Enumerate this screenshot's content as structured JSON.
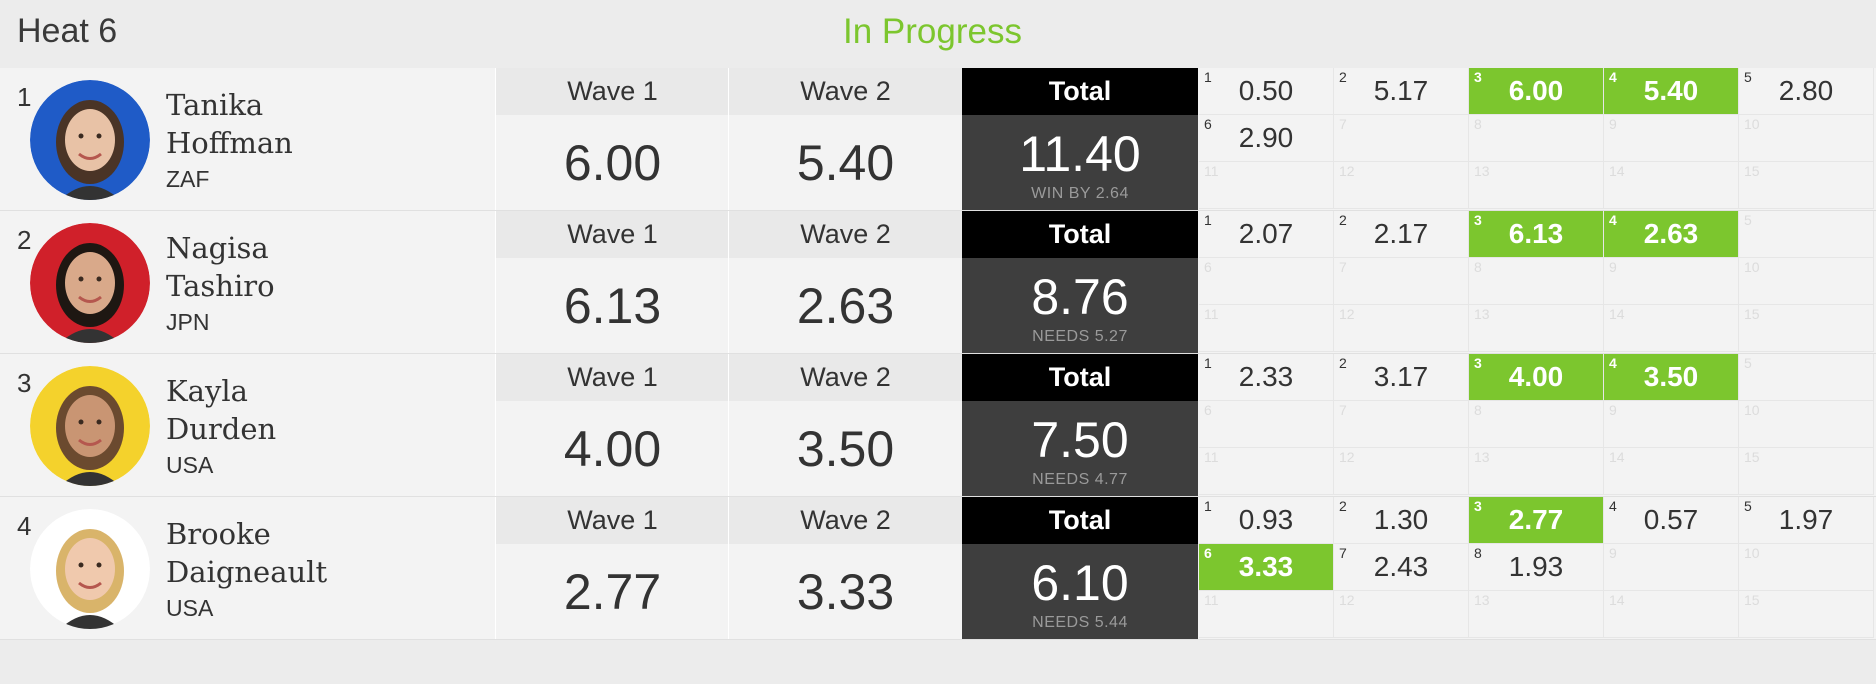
{
  "heat": {
    "title": "Heat 6",
    "status": "In Progress"
  },
  "labels": {
    "wave1": "Wave 1",
    "wave2": "Wave 2",
    "total": "Total"
  },
  "colors": {
    "accent": "#7cc62e",
    "total_header": "#000000",
    "total_body": "#3e3e3e"
  },
  "surfers": [
    {
      "rank": "1",
      "first": "Tanika",
      "last": "Hoffman",
      "country": "ZAF",
      "avatar_icon": "surfer-photo-tanika-hoffman",
      "avatar_bg": "#1f5bc7",
      "wave1": "6.00",
      "wave2": "5.40",
      "total": "11.40",
      "note": "WIN BY 2.64",
      "waves": [
        {
          "n": "1",
          "s": "0.50",
          "best": false
        },
        {
          "n": "2",
          "s": "5.17",
          "best": false
        },
        {
          "n": "3",
          "s": "6.00",
          "best": true
        },
        {
          "n": "4",
          "s": "5.40",
          "best": true
        },
        {
          "n": "5",
          "s": "2.80",
          "best": false
        },
        {
          "n": "6",
          "s": "2.90",
          "best": false
        },
        {
          "n": "7",
          "s": "",
          "best": false
        },
        {
          "n": "8",
          "s": "",
          "best": false
        },
        {
          "n": "9",
          "s": "",
          "best": false
        },
        {
          "n": "10",
          "s": "",
          "best": false
        },
        {
          "n": "11",
          "s": "",
          "best": false
        },
        {
          "n": "12",
          "s": "",
          "best": false
        },
        {
          "n": "13",
          "s": "",
          "best": false
        },
        {
          "n": "14",
          "s": "",
          "best": false
        },
        {
          "n": "15",
          "s": "",
          "best": false
        }
      ]
    },
    {
      "rank": "2",
      "first": "Nagisa",
      "last": "Tashiro",
      "country": "JPN",
      "avatar_icon": "surfer-photo-nagisa-tashiro",
      "avatar_bg": "#d0202a",
      "wave1": "6.13",
      "wave2": "2.63",
      "total": "8.76",
      "note": "NEEDS 5.27",
      "waves": [
        {
          "n": "1",
          "s": "2.07",
          "best": false
        },
        {
          "n": "2",
          "s": "2.17",
          "best": false
        },
        {
          "n": "3",
          "s": "6.13",
          "best": true
        },
        {
          "n": "4",
          "s": "2.63",
          "best": true
        },
        {
          "n": "5",
          "s": "",
          "best": false
        },
        {
          "n": "6",
          "s": "",
          "best": false
        },
        {
          "n": "7",
          "s": "",
          "best": false
        },
        {
          "n": "8",
          "s": "",
          "best": false
        },
        {
          "n": "9",
          "s": "",
          "best": false
        },
        {
          "n": "10",
          "s": "",
          "best": false
        },
        {
          "n": "11",
          "s": "",
          "best": false
        },
        {
          "n": "12",
          "s": "",
          "best": false
        },
        {
          "n": "13",
          "s": "",
          "best": false
        },
        {
          "n": "14",
          "s": "",
          "best": false
        },
        {
          "n": "15",
          "s": "",
          "best": false
        }
      ]
    },
    {
      "rank": "3",
      "first": "Kayla",
      "last": "Durden",
      "country": "USA",
      "avatar_icon": "surfer-photo-kayla-durden",
      "avatar_bg": "#f4d22c",
      "wave1": "4.00",
      "wave2": "3.50",
      "total": "7.50",
      "note": "NEEDS 4.77",
      "waves": [
        {
          "n": "1",
          "s": "2.33",
          "best": false
        },
        {
          "n": "2",
          "s": "3.17",
          "best": false
        },
        {
          "n": "3",
          "s": "4.00",
          "best": true
        },
        {
          "n": "4",
          "s": "3.50",
          "best": true
        },
        {
          "n": "5",
          "s": "",
          "best": false
        },
        {
          "n": "6",
          "s": "",
          "best": false
        },
        {
          "n": "7",
          "s": "",
          "best": false
        },
        {
          "n": "8",
          "s": "",
          "best": false
        },
        {
          "n": "9",
          "s": "",
          "best": false
        },
        {
          "n": "10",
          "s": "",
          "best": false
        },
        {
          "n": "11",
          "s": "",
          "best": false
        },
        {
          "n": "12",
          "s": "",
          "best": false
        },
        {
          "n": "13",
          "s": "",
          "best": false
        },
        {
          "n": "14",
          "s": "",
          "best": false
        },
        {
          "n": "15",
          "s": "",
          "best": false
        }
      ]
    },
    {
      "rank": "4",
      "first": "Brooke",
      "last": "Daigneault",
      "country": "USA",
      "avatar_icon": "surfer-photo-brooke-daigneault",
      "avatar_bg": "#ffffff",
      "wave1": "2.77",
      "wave2": "3.33",
      "total": "6.10",
      "note": "NEEDS 5.44",
      "waves": [
        {
          "n": "1",
          "s": "0.93",
          "best": false
        },
        {
          "n": "2",
          "s": "1.30",
          "best": false
        },
        {
          "n": "3",
          "s": "2.77",
          "best": true
        },
        {
          "n": "4",
          "s": "0.57",
          "best": false
        },
        {
          "n": "5",
          "s": "1.97",
          "best": false
        },
        {
          "n": "6",
          "s": "3.33",
          "best": true
        },
        {
          "n": "7",
          "s": "2.43",
          "best": false
        },
        {
          "n": "8",
          "s": "1.93",
          "best": false
        },
        {
          "n": "9",
          "s": "",
          "best": false
        },
        {
          "n": "10",
          "s": "",
          "best": false
        },
        {
          "n": "11",
          "s": "",
          "best": false
        },
        {
          "n": "12",
          "s": "",
          "best": false
        },
        {
          "n": "13",
          "s": "",
          "best": false
        },
        {
          "n": "14",
          "s": "",
          "best": false
        },
        {
          "n": "15",
          "s": "",
          "best": false
        }
      ]
    }
  ]
}
